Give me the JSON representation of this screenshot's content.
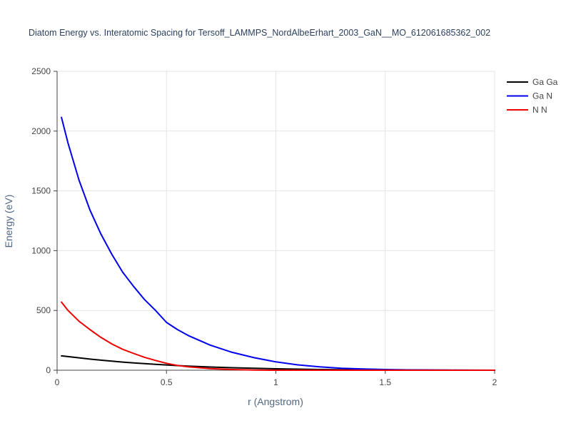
{
  "chart_data": {
    "type": "line",
    "title": "Diatom Energy vs. Interatomic Spacing for Tersoff_LAMMPS_NordAlbeErhart_2003_GaN__MO_612061685362_002",
    "xlabel": "r (Angstrom)",
    "ylabel": "Energy (eV)",
    "xlim": [
      0,
      2
    ],
    "ylim": [
      0,
      2500
    ],
    "xticks": [
      0,
      0.5,
      1,
      1.5,
      2
    ],
    "xtick_labels": [
      "0",
      "0.5",
      "1",
      "1.5",
      "2"
    ],
    "yticks": [
      0,
      500,
      1000,
      1500,
      2000,
      2500
    ],
    "ytick_labels": [
      "0",
      "500",
      "1000",
      "1500",
      "2000",
      "2500"
    ],
    "grid": true,
    "legend_position": "top-right",
    "x": [
      0.02,
      0.05,
      0.1,
      0.15,
      0.2,
      0.25,
      0.3,
      0.35,
      0.4,
      0.45,
      0.5,
      0.55,
      0.6,
      0.7,
      0.8,
      0.9,
      1.0,
      1.1,
      1.2,
      1.3,
      1.4,
      1.5,
      1.6,
      1.8,
      2.0
    ],
    "series": [
      {
        "name": "Ga Ga",
        "color": "#000000",
        "values": [
          120,
          114,
          104,
          93,
          84,
          76,
          68,
          61,
          55,
          49,
          44,
          39,
          34,
          27,
          21,
          16,
          12,
          9,
          6,
          4,
          3,
          2,
          1,
          0,
          0
        ]
      },
      {
        "name": "Ga N",
        "color": "#0000ee",
        "values": [
          2115,
          1900,
          1590,
          1340,
          1140,
          970,
          820,
          700,
          590,
          500,
          400,
          340,
          290,
          210,
          150,
          105,
          70,
          45,
          28,
          17,
          10,
          6,
          3,
          1,
          0
        ]
      },
      {
        "name": "N N",
        "color": "#ee0000",
        "values": [
          570,
          500,
          410,
          340,
          275,
          220,
          175,
          140,
          108,
          82,
          58,
          40,
          28,
          13,
          6,
          2,
          0,
          0,
          0,
          0,
          0,
          0,
          0,
          0,
          0
        ]
      }
    ]
  }
}
